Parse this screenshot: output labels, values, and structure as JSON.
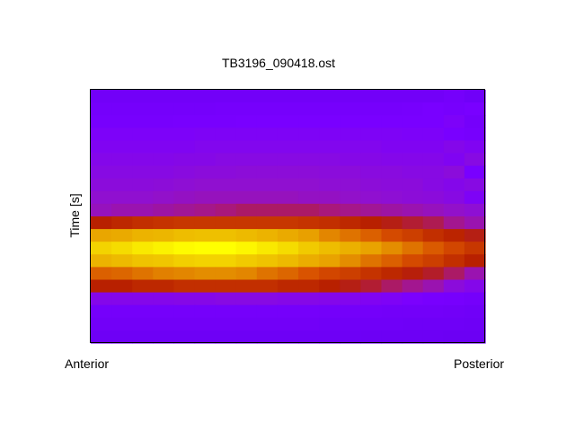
{
  "chart_data": {
    "type": "heatmap",
    "title": "TB3196_090418.ost",
    "xlabel": "",
    "ylabel": "Time [s]",
    "x_tick_labels": [
      "Anterior",
      "Posterior"
    ],
    "grid": false,
    "legend": "none",
    "colormap": [
      "#6c00f4",
      "#7a00ff",
      "#9010d0",
      "#a81880",
      "#b82000",
      "#d85000",
      "#e8a000",
      "#f0c800",
      "#ffff00"
    ],
    "columns": 19,
    "values": [
      [
        0.05,
        0.05,
        0.05,
        0.05,
        0.05,
        0.05,
        0.05,
        0.05,
        0.05,
        0.05,
        0.05,
        0.05,
        0.05,
        0.05,
        0.05,
        0.05,
        0.05,
        0.08,
        0.04
      ],
      [
        0.08,
        0.08,
        0.08,
        0.08,
        0.08,
        0.08,
        0.09,
        0.09,
        0.09,
        0.09,
        0.09,
        0.09,
        0.09,
        0.09,
        0.09,
        0.1,
        0.12,
        0.1,
        0.12
      ],
      [
        0.1,
        0.1,
        0.1,
        0.1,
        0.11,
        0.11,
        0.11,
        0.12,
        0.12,
        0.12,
        0.12,
        0.12,
        0.12,
        0.12,
        0.12,
        0.12,
        0.12,
        0.14,
        0.08
      ],
      [
        0.14,
        0.14,
        0.14,
        0.14,
        0.14,
        0.15,
        0.15,
        0.15,
        0.15,
        0.15,
        0.15,
        0.15,
        0.15,
        0.15,
        0.15,
        0.14,
        0.14,
        0.12,
        0.1
      ],
      [
        0.16,
        0.16,
        0.16,
        0.16,
        0.16,
        0.17,
        0.17,
        0.17,
        0.17,
        0.17,
        0.17,
        0.17,
        0.17,
        0.17,
        0.16,
        0.16,
        0.16,
        0.18,
        0.16
      ],
      [
        0.18,
        0.18,
        0.18,
        0.18,
        0.19,
        0.19,
        0.2,
        0.2,
        0.2,
        0.2,
        0.2,
        0.2,
        0.19,
        0.19,
        0.18,
        0.18,
        0.18,
        0.16,
        0.2
      ],
      [
        0.2,
        0.2,
        0.2,
        0.2,
        0.21,
        0.22,
        0.22,
        0.23,
        0.23,
        0.23,
        0.23,
        0.22,
        0.22,
        0.21,
        0.21,
        0.2,
        0.2,
        0.22,
        0.12
      ],
      [
        0.22,
        0.22,
        0.22,
        0.23,
        0.24,
        0.25,
        0.25,
        0.25,
        0.25,
        0.25,
        0.25,
        0.24,
        0.24,
        0.23,
        0.22,
        0.22,
        0.2,
        0.18,
        0.2
      ],
      [
        0.25,
        0.25,
        0.25,
        0.26,
        0.27,
        0.28,
        0.28,
        0.28,
        0.28,
        0.28,
        0.27,
        0.27,
        0.26,
        0.25,
        0.24,
        0.23,
        0.22,
        0.2,
        0.15
      ],
      [
        0.28,
        0.3,
        0.3,
        0.32,
        0.34,
        0.36,
        0.38,
        0.4,
        0.4,
        0.4,
        0.4,
        0.38,
        0.36,
        0.34,
        0.32,
        0.3,
        0.28,
        0.26,
        0.24
      ],
      [
        0.5,
        0.52,
        0.54,
        0.55,
        0.56,
        0.56,
        0.56,
        0.56,
        0.56,
        0.56,
        0.55,
        0.54,
        0.52,
        0.5,
        0.48,
        0.45,
        0.42,
        0.35,
        0.3
      ],
      [
        0.77,
        0.78,
        0.81,
        0.82,
        0.84,
        0.85,
        0.85,
        0.83,
        0.81,
        0.78,
        0.75,
        0.71,
        0.68,
        0.65,
        0.61,
        0.58,
        0.54,
        0.51,
        0.48
      ],
      [
        0.9,
        0.92,
        0.95,
        0.97,
        0.99,
        1,
        1,
        0.98,
        0.95,
        0.92,
        0.88,
        0.84,
        0.8,
        0.76,
        0.72,
        0.68,
        0.64,
        0.6,
        0.56
      ],
      [
        0.81,
        0.83,
        0.86,
        0.87,
        0.89,
        0.9,
        0.9,
        0.88,
        0.86,
        0.83,
        0.79,
        0.76,
        0.72,
        0.68,
        0.65,
        0.61,
        0.58,
        0.54,
        0.5
      ],
      [
        0.65,
        0.66,
        0.68,
        0.7,
        0.71,
        0.72,
        0.72,
        0.71,
        0.68,
        0.66,
        0.63,
        0.6,
        0.58,
        0.55,
        0.52,
        0.49,
        0.46,
        0.4,
        0.3
      ],
      [
        0.5,
        0.5,
        0.52,
        0.52,
        0.54,
        0.54,
        0.54,
        0.54,
        0.54,
        0.52,
        0.52,
        0.5,
        0.48,
        0.45,
        0.4,
        0.35,
        0.3,
        0.22,
        0.18
      ],
      [
        0.18,
        0.18,
        0.18,
        0.18,
        0.19,
        0.19,
        0.2,
        0.2,
        0.2,
        0.19,
        0.19,
        0.18,
        0.17,
        0.16,
        0.15,
        0.13,
        0.11,
        0.1,
        0.08
      ],
      [
        0.08,
        0.08,
        0.08,
        0.08,
        0.08,
        0.08,
        0.08,
        0.08,
        0.08,
        0.08,
        0.08,
        0.07,
        0.07,
        0.07,
        0.06,
        0.06,
        0.06,
        0.05,
        0.04
      ],
      [
        0.05,
        0.05,
        0.05,
        0.05,
        0.05,
        0.05,
        0.05,
        0.05,
        0.05,
        0.05,
        0.05,
        0.04,
        0.04,
        0.04,
        0.04,
        0.03,
        0.03,
        0.03,
        0.02
      ],
      [
        0.02,
        0.02,
        0.02,
        0.02,
        0.02,
        0.02,
        0.02,
        0.02,
        0.02,
        0.02,
        0.02,
        0.02,
        0.02,
        0.01,
        0.01,
        0.01,
        0.01,
        0.0,
        0.0
      ]
    ]
  }
}
